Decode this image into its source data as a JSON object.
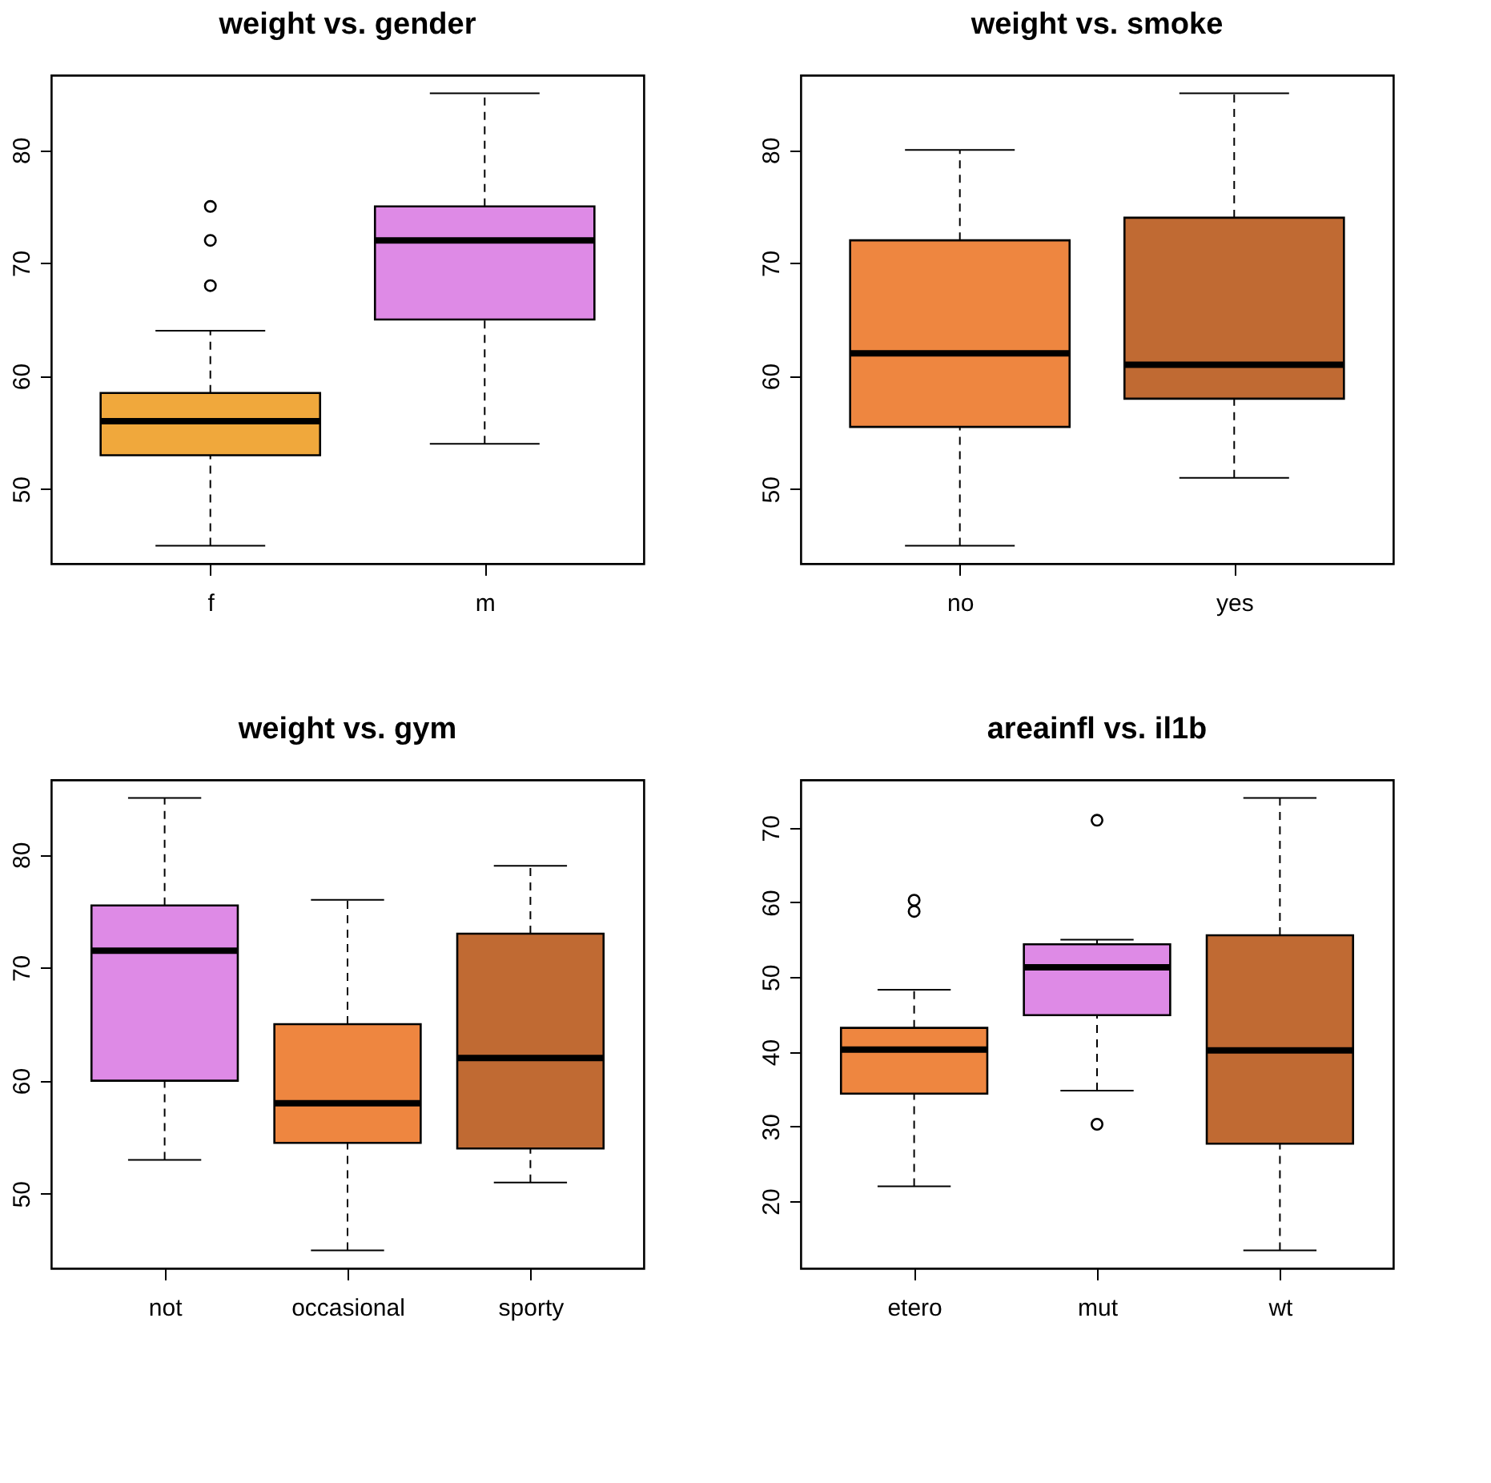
{
  "chart_data": [
    {
      "type": "box",
      "title": "weight vs. gender",
      "categories": [
        "f",
        "m"
      ],
      "colors": [
        "#f0a83c",
        "#de8ae6"
      ],
      "ylim": [
        43.4,
        86.6
      ],
      "yticks": [
        50,
        60,
        70,
        80
      ],
      "boxes": [
        {
          "low": 45,
          "q1": 53,
          "median": 56,
          "q3": 58.5,
          "high": 64,
          "outliers": [
            68,
            72,
            75
          ]
        },
        {
          "low": 54,
          "q1": 65,
          "median": 72,
          "q3": 75,
          "high": 85
        }
      ]
    },
    {
      "type": "box",
      "title": "weight vs. smoke",
      "categories": [
        "no",
        "yes"
      ],
      "colors": [
        "#ee8640",
        "#c06a33"
      ],
      "ylim": [
        43.4,
        86.6
      ],
      "yticks": [
        50,
        60,
        70,
        80
      ],
      "boxes": [
        {
          "low": 45,
          "q1": 55.5,
          "median": 62,
          "q3": 72,
          "high": 80
        },
        {
          "low": 51,
          "q1": 58,
          "median": 61,
          "q3": 74,
          "high": 85
        }
      ]
    },
    {
      "type": "box",
      "title": "weight vs. gym",
      "categories": [
        "not",
        "occasional",
        "sporty"
      ],
      "colors": [
        "#de8ae6",
        "#ee8640",
        "#c06a33"
      ],
      "ylim": [
        43.4,
        86.6
      ],
      "yticks": [
        50,
        60,
        70,
        80
      ],
      "boxes": [
        {
          "low": 53,
          "q1": 60,
          "median": 71.5,
          "q3": 75.5,
          "high": 85
        },
        {
          "low": 45,
          "q1": 54.5,
          "median": 58,
          "q3": 65,
          "high": 76
        },
        {
          "low": 51,
          "q1": 54,
          "median": 62,
          "q3": 73,
          "high": 79
        }
      ]
    },
    {
      "type": "box",
      "title": "areainfl vs. il1b",
      "categories": [
        "etero",
        "mut",
        "wt"
      ],
      "colors": [
        "#ee8640",
        "#de8ae6",
        "#c06a33"
      ],
      "ylim": [
        11.0,
        76.4
      ],
      "yticks": [
        20,
        30,
        40,
        50,
        60,
        70
      ],
      "boxes": [
        {
          "low": 22.0,
          "q1": 34.4,
          "median": 40.3,
          "q3": 43.2,
          "high": 48.3,
          "outliers": [
            58.8,
            60.3
          ]
        },
        {
          "low": 34.8,
          "q1": 44.9,
          "median": 51.3,
          "q3": 54.4,
          "high": 55.0,
          "outliers": [
            30.3,
            71.0
          ]
        },
        {
          "low": 13.4,
          "q1": 27.7,
          "median": 40.2,
          "q3": 55.6,
          "high": 74.0
        }
      ]
    }
  ]
}
